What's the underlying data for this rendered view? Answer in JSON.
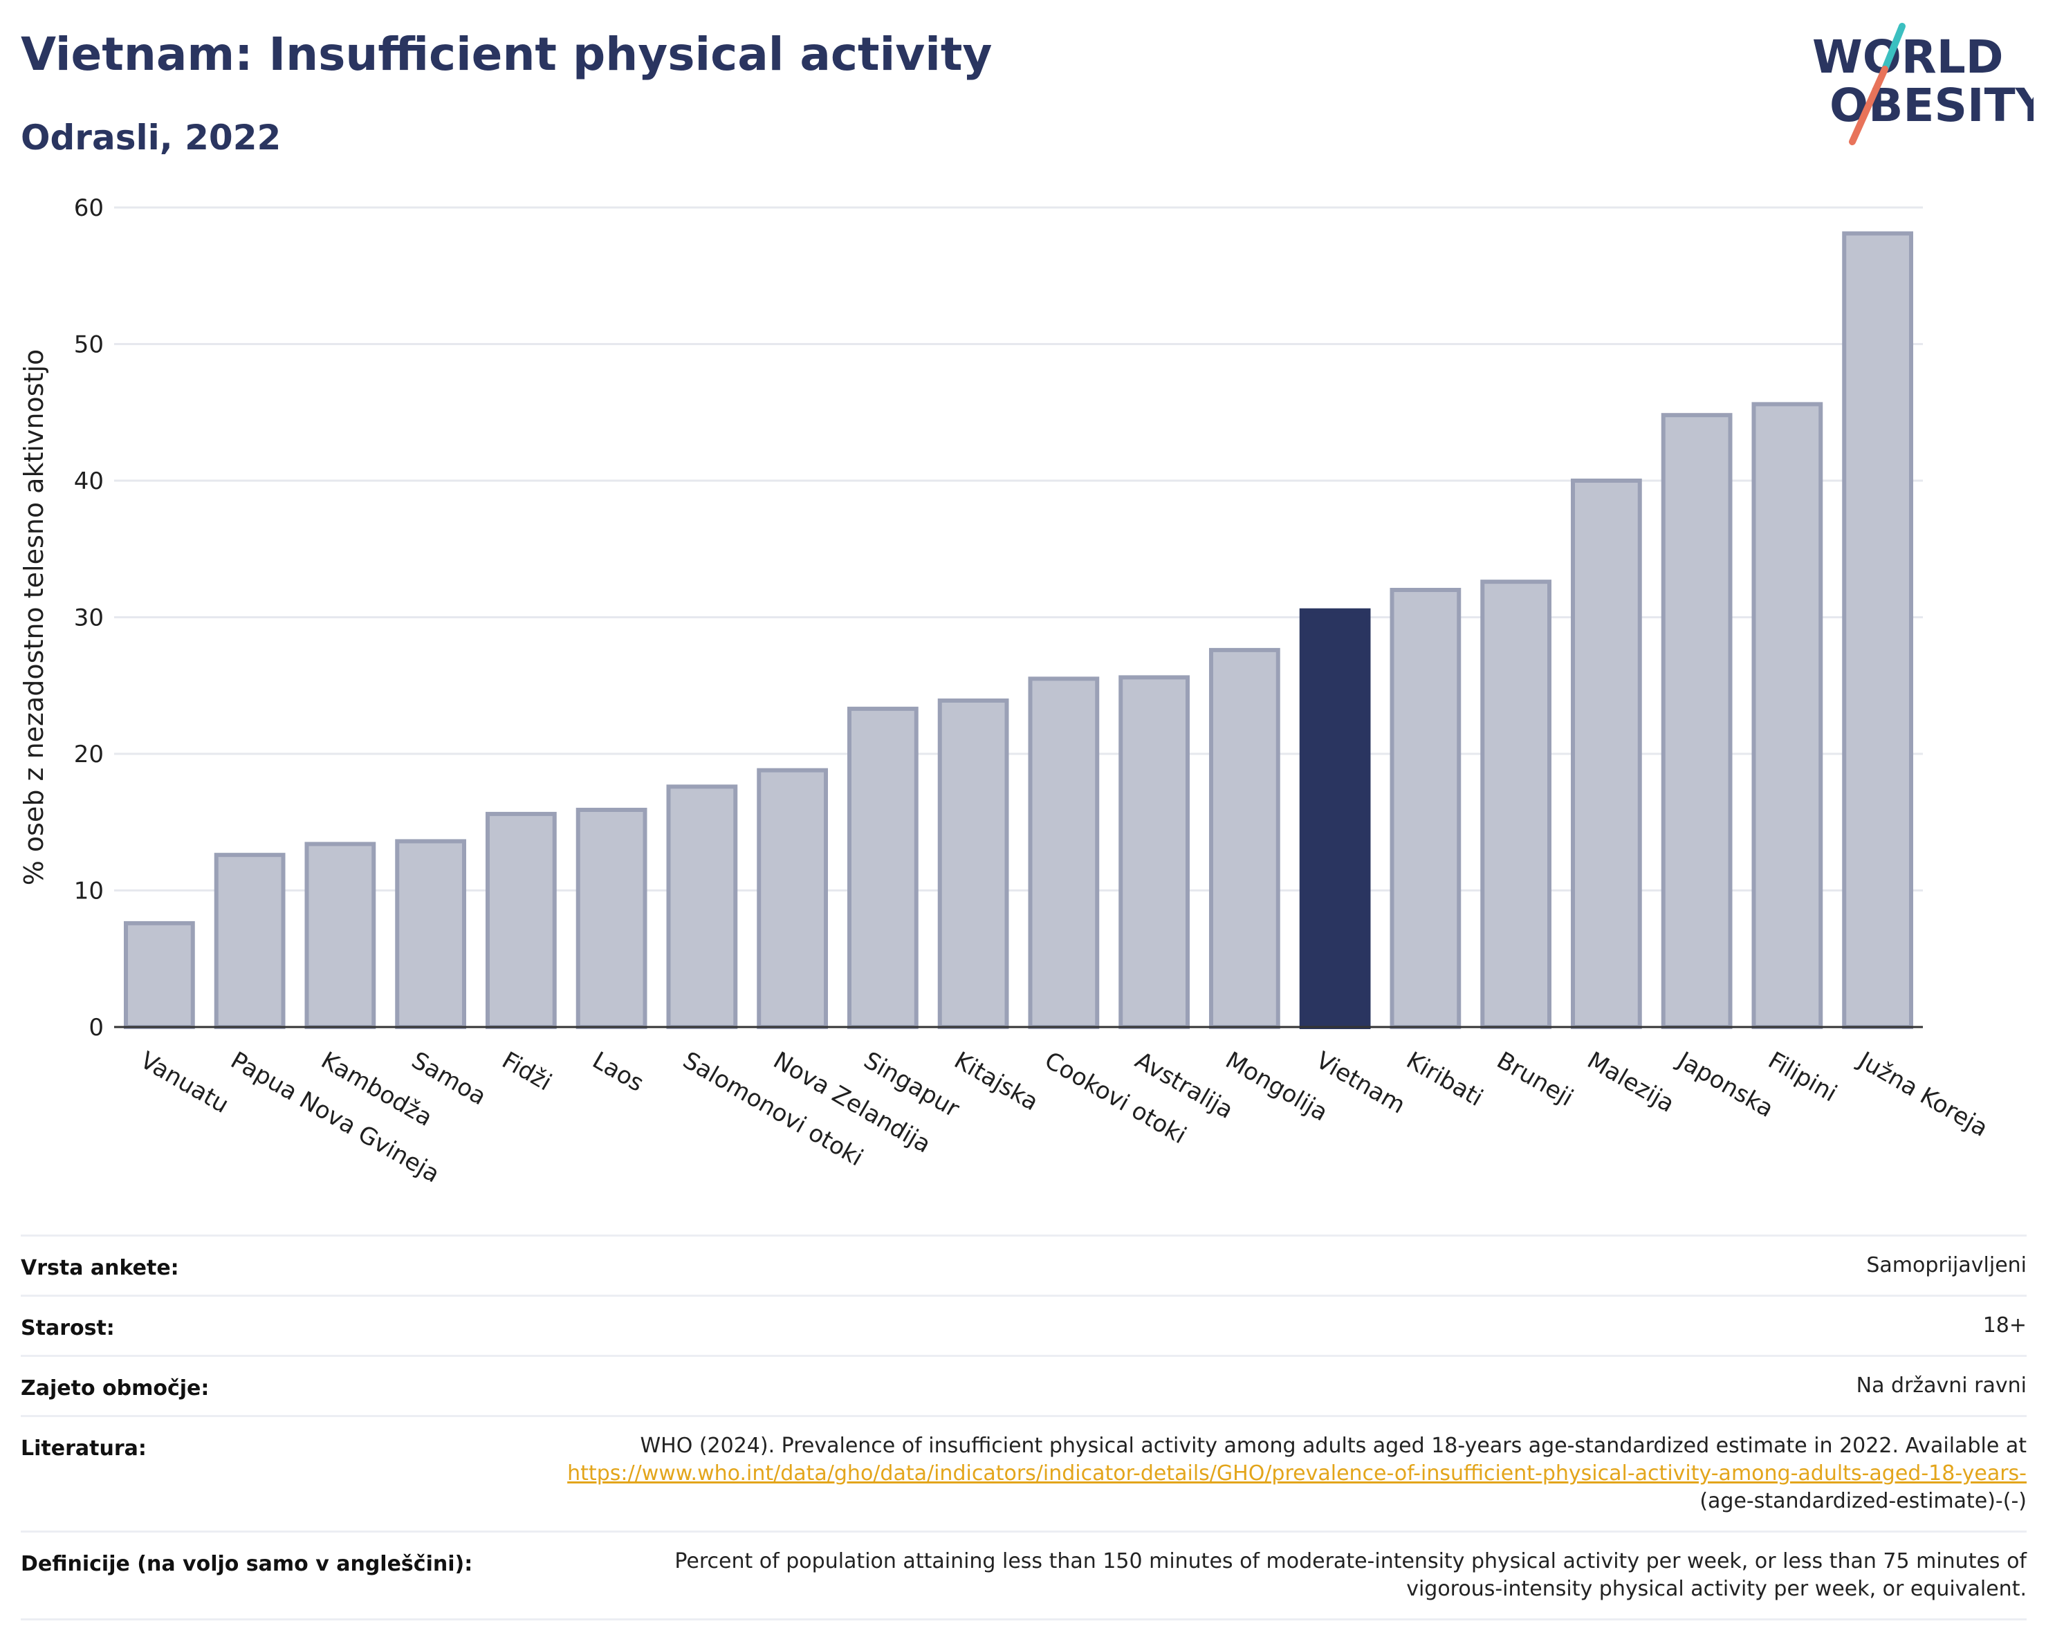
{
  "header": {
    "title": "Vietnam: Insufficient physical activity",
    "subtitle": "Odrasli, 2022",
    "logo_line1": "WORLD",
    "logo_line2": "OBESITY"
  },
  "colors": {
    "bar_default": "#bfc3d0",
    "bar_default_stroke": "#9aa0b6",
    "bar_highlight": "#2a3560",
    "grid": "#e6e8ee",
    "link": "#e3a51b",
    "logo_teal": "#3bbfc0",
    "logo_coral": "#e8735a"
  },
  "chart_data": {
    "type": "bar",
    "ylabel": "% oseb z nezadostno telesno aktivnostjo",
    "ylim": [
      0,
      60
    ],
    "yticks": [
      0,
      10,
      20,
      30,
      40,
      50,
      60
    ],
    "grid": true,
    "highlight": "Vietnam",
    "categories": [
      "Vanuatu",
      "Papua Nova Gvineja",
      "Kambodža",
      "Samoa",
      "Fidži",
      "Laos",
      "Salomonovi otoki",
      "Nova Zelandija",
      "Singapur",
      "Kitajska",
      "Cookovi otoki",
      "Avstralija",
      "Mongolija",
      "Vietnam",
      "Kiribati",
      "Bruneji",
      "Malezija",
      "Japonska",
      "Filipini",
      "Južna Koreja"
    ],
    "values": [
      7.6,
      12.6,
      13.4,
      13.6,
      15.6,
      15.9,
      17.6,
      18.8,
      23.3,
      23.9,
      25.5,
      25.6,
      27.6,
      30.5,
      32.0,
      32.6,
      40.0,
      44.8,
      45.6,
      58.1
    ]
  },
  "info_table": [
    {
      "label": "Vrsta ankete:",
      "value": "Samoprijavljeni"
    },
    {
      "label": "Starost:",
      "value": "18+"
    },
    {
      "label": "Zajeto območje:",
      "value": "Na državni ravni"
    },
    {
      "label": "Literatura:",
      "value_prefix": "WHO (2024). Prevalence of insufficient physical activity among adults aged 18-years age-standardized estimate in 2022. Available at",
      "link_text": "https://www.who.int/data/gho/data/indicators/indicator-details/GHO/prevalence-of-insufficient-physical-activity-among-adults-aged-18-years-",
      "value_suffix": "(age-standardized-estimate)-(-)"
    },
    {
      "label": "Definicije (na voljo samo v angleščini):",
      "value": "Percent of population attaining less than 150 minutes of moderate-intensity physical activity per week, or less than 75 minutes of vigorous-intensity physical activity per week, or equivalent."
    }
  ]
}
